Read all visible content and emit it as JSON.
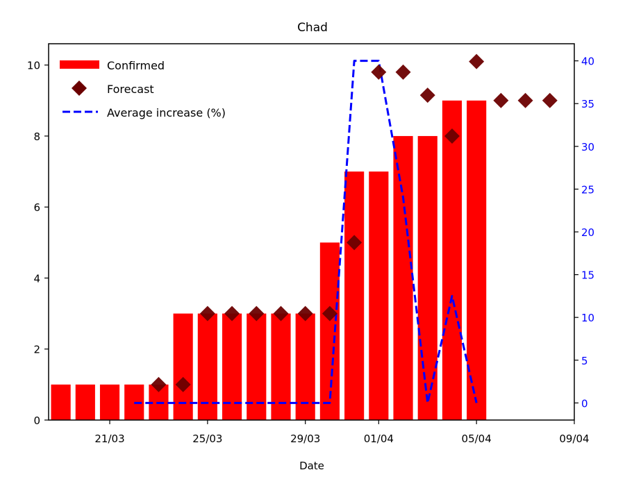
{
  "chart_data": {
    "type": "bar",
    "title": "Chad",
    "xlabel": "Date",
    "ylabel": "",
    "y2label": "",
    "x_start": "2020-03-19",
    "x_range": [
      "2020-03-19",
      "2020-04-09"
    ],
    "ylim": [
      0,
      10.6
    ],
    "y2lim": [
      -2,
      42
    ],
    "x_ticks": [
      {
        "date": "2020-03-21",
        "label": "21/03"
      },
      {
        "date": "2020-03-25",
        "label": "25/03"
      },
      {
        "date": "2020-03-29",
        "label": "29/03"
      },
      {
        "date": "2020-04-01",
        "label": "01/04"
      },
      {
        "date": "2020-04-05",
        "label": "05/04"
      },
      {
        "date": "2020-04-09",
        "label": "09/04"
      }
    ],
    "y_ticks": [
      {
        "value": 0,
        "label": "0"
      },
      {
        "value": 2,
        "label": "2"
      },
      {
        "value": 4,
        "label": "4"
      },
      {
        "value": 6,
        "label": "6"
      },
      {
        "value": 8,
        "label": "8"
      },
      {
        "value": 10,
        "label": "10"
      }
    ],
    "y2_ticks": [
      {
        "value": 0,
        "label": "0"
      },
      {
        "value": 5,
        "label": "5"
      },
      {
        "value": 10,
        "label": "10"
      },
      {
        "value": 15,
        "label": "15"
      },
      {
        "value": 20,
        "label": "20"
      },
      {
        "value": 25,
        "label": "25"
      },
      {
        "value": 30,
        "label": "30"
      },
      {
        "value": 35,
        "label": "35"
      },
      {
        "value": 40,
        "label": "40"
      }
    ],
    "legend_position": "top-left",
    "series": [
      {
        "name": "Confirmed",
        "kind": "bar",
        "axis": "left",
        "color": "#ff0000",
        "points": [
          {
            "date": "2020-03-19",
            "value": 1
          },
          {
            "date": "2020-03-20",
            "value": 1
          },
          {
            "date": "2020-03-21",
            "value": 1
          },
          {
            "date": "2020-03-22",
            "value": 1
          },
          {
            "date": "2020-03-23",
            "value": 1
          },
          {
            "date": "2020-03-24",
            "value": 3
          },
          {
            "date": "2020-03-25",
            "value": 3
          },
          {
            "date": "2020-03-26",
            "value": 3
          },
          {
            "date": "2020-03-27",
            "value": 3
          },
          {
            "date": "2020-03-28",
            "value": 3
          },
          {
            "date": "2020-03-29",
            "value": 3
          },
          {
            "date": "2020-03-30",
            "value": 5
          },
          {
            "date": "2020-03-31",
            "value": 7
          },
          {
            "date": "2020-04-01",
            "value": 7
          },
          {
            "date": "2020-04-02",
            "value": 8
          },
          {
            "date": "2020-04-03",
            "value": 8
          },
          {
            "date": "2020-04-04",
            "value": 9
          },
          {
            "date": "2020-04-05",
            "value": 9
          }
        ]
      },
      {
        "name": "Forecast",
        "kind": "scatter",
        "marker": "diamond",
        "axis": "left",
        "color": "#6b0000",
        "points": [
          {
            "date": "2020-03-23",
            "value": 1
          },
          {
            "date": "2020-03-24",
            "value": 1
          },
          {
            "date": "2020-03-25",
            "value": 3
          },
          {
            "date": "2020-03-26",
            "value": 3
          },
          {
            "date": "2020-03-27",
            "value": 3
          },
          {
            "date": "2020-03-28",
            "value": 3
          },
          {
            "date": "2020-03-29",
            "value": 3
          },
          {
            "date": "2020-03-30",
            "value": 3
          },
          {
            "date": "2020-03-31",
            "value": 5
          },
          {
            "date": "2020-04-01",
            "value": 9.8
          },
          {
            "date": "2020-04-02",
            "value": 9.8
          },
          {
            "date": "2020-04-03",
            "value": 9.15
          },
          {
            "date": "2020-04-04",
            "value": 8
          },
          {
            "date": "2020-04-05",
            "value": 10.1
          },
          {
            "date": "2020-04-06",
            "value": 9
          },
          {
            "date": "2020-04-07",
            "value": 9
          },
          {
            "date": "2020-04-08",
            "value": 9
          }
        ]
      },
      {
        "name": "Average increase (%)",
        "kind": "line",
        "style": "dashed",
        "axis": "right",
        "color": "#0000ff",
        "points": [
          {
            "date": "2020-03-22",
            "value": 0
          },
          {
            "date": "2020-03-23",
            "value": 0
          },
          {
            "date": "2020-03-24",
            "value": 0
          },
          {
            "date": "2020-03-25",
            "value": 0
          },
          {
            "date": "2020-03-26",
            "value": 0
          },
          {
            "date": "2020-03-27",
            "value": 0
          },
          {
            "date": "2020-03-28",
            "value": 0
          },
          {
            "date": "2020-03-29",
            "value": 0
          },
          {
            "date": "2020-03-30",
            "value": 0
          },
          {
            "date": "2020-03-31",
            "value": 40
          },
          {
            "date": "2020-04-01",
            "value": 40
          },
          {
            "date": "2020-04-02",
            "value": 24
          },
          {
            "date": "2020-04-03",
            "value": 0
          },
          {
            "date": "2020-04-04",
            "value": 12.5
          },
          {
            "date": "2020-04-05",
            "value": 0
          }
        ]
      }
    ]
  }
}
